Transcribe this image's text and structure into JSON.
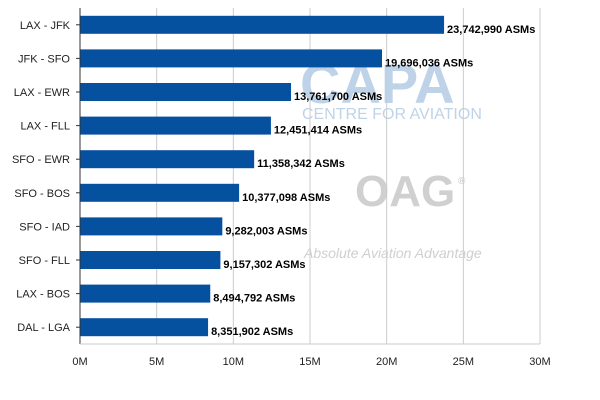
{
  "chart_data": {
    "type": "bar",
    "orientation": "horizontal",
    "title": "",
    "xlabel": "",
    "ylabel": "",
    "categories": [
      "LAX - JFK",
      "JFK - SFO",
      "LAX - EWR",
      "LAX - FLL",
      "SFO - EWR",
      "SFO - BOS",
      "SFO - IAD",
      "SFO - FLL",
      "LAX - BOS",
      "DAL - LGA"
    ],
    "values": [
      23742990,
      19696036,
      13761700,
      12451414,
      11358342,
      10377098,
      9282003,
      9157302,
      8494792,
      8351902
    ],
    "data_labels": [
      "23,742,990 ASMs",
      "19,696,036 ASMs",
      "13,761,700 ASMs",
      "12,451,414 ASMs",
      "11,358,342 ASMs",
      "10,377,098 ASMs",
      "9,282,003 ASMs",
      "9,157,302 ASMs",
      "8,494,792 ASMs",
      "8,351,902 ASMs"
    ],
    "xlim": [
      0,
      30000000
    ],
    "x_ticks": [
      0,
      5000000,
      10000000,
      15000000,
      20000000,
      25000000,
      30000000
    ],
    "x_tick_labels": [
      "0M",
      "5M",
      "10M",
      "15M",
      "20M",
      "25M",
      "30M"
    ],
    "grid": "vertical",
    "legend": "none"
  },
  "colors": {
    "bar": "#0650a0",
    "gridline": "#cccccc",
    "axis": "#333333",
    "watermark_capa": "#b9cfe6",
    "watermark_oag": "#c8c8c8"
  },
  "watermarks": {
    "capa_title": "CAPA",
    "capa_subtitle": "CENTRE FOR AVIATION",
    "oag_title": "OAG",
    "oag_mark": "®",
    "oag_tagline": "Absolute Aviation Advantage"
  }
}
